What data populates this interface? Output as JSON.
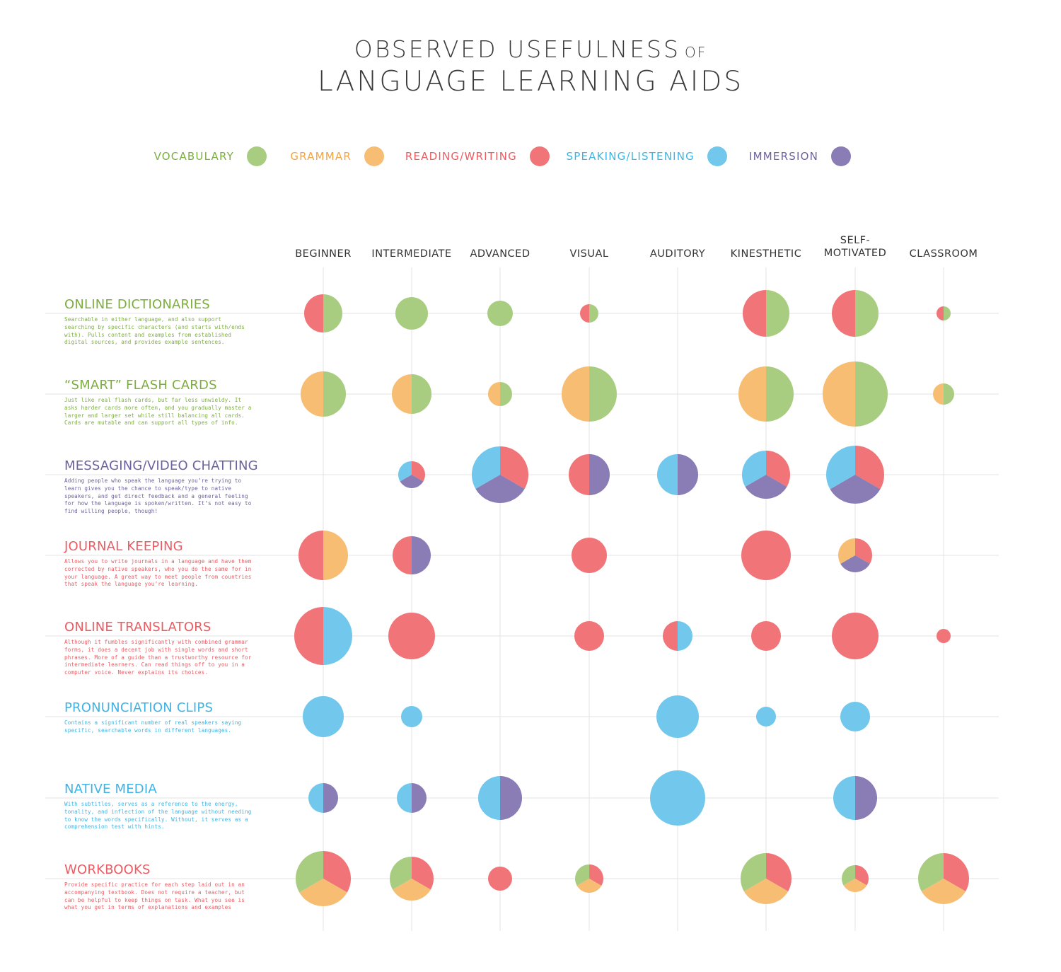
{
  "colors": {
    "vocabulary": "#a8cd80",
    "grammar": "#f6bd73",
    "reading_writing": "#f07478",
    "speaking_listening": "#71c7ec",
    "immersion": "#8a7cb4"
  },
  "title": {
    "line1": "OBSERVED USEFULNESS",
    "of": "OF",
    "line2": "LANGUAGE LEARNING AIDS"
  },
  "legend": [
    {
      "key": "vocabulary",
      "label": "VOCABULARY",
      "text_color": "#7cae3e"
    },
    {
      "key": "grammar",
      "label": "GRAMMAR",
      "text_color": "#f2a443"
    },
    {
      "key": "reading_writing",
      "label": "READING/WRITING",
      "text_color": "#ec5b62"
    },
    {
      "key": "speaking_listening",
      "label": "SPEAKING/LISTENING",
      "text_color": "#3fb4e4"
    },
    {
      "key": "immersion",
      "label": "IMMERSION",
      "text_color": "#6e619f"
    }
  ],
  "chart_data": {
    "type": "pie",
    "columns": [
      {
        "id": "beginner",
        "line1": "BEGINNER",
        "line2": ""
      },
      {
        "id": "intermediate",
        "line1": "INTERMEDIATE",
        "line2": ""
      },
      {
        "id": "advanced",
        "line1": "ADVANCED",
        "line2": ""
      },
      {
        "id": "visual",
        "line1": "VISUAL",
        "line2": ""
      },
      {
        "id": "auditory",
        "line1": "AUDITORY",
        "line2": ""
      },
      {
        "id": "kinesthetic",
        "line1": "KINESTHETIC",
        "line2": ""
      },
      {
        "id": "self-motivated",
        "line1": "SELF-",
        "line2": "MOTIVATED"
      },
      {
        "id": "classroom",
        "line1": "CLASSROOM",
        "line2": ""
      }
    ],
    "rows": [
      {
        "name": "ONLINE DICTIONARIES",
        "title_color": "#7cae3e",
        "description": "Searchable in either language, and also support searching by specific characters (and starts with/ends with). Pulls content and examples from established digital sources, and provides example sentences.",
        "cells": [
          {
            "r": 27,
            "slices": [
              "vocabulary",
              "reading_writing"
            ]
          },
          {
            "r": 23,
            "slices": [
              "vocabulary"
            ]
          },
          {
            "r": 18,
            "slices": [
              "vocabulary"
            ]
          },
          {
            "r": 13,
            "slices": [
              "vocabulary",
              "reading_writing"
            ]
          },
          null,
          {
            "r": 33,
            "slices": [
              "vocabulary",
              "reading_writing"
            ]
          },
          {
            "r": 33,
            "slices": [
              "vocabulary",
              "reading_writing"
            ]
          },
          {
            "r": 10,
            "slices": [
              "vocabulary",
              "reading_writing"
            ]
          }
        ]
      },
      {
        "name": "“SMART” FLASH CARDS",
        "title_color": "#7cae3e",
        "description": "Just like real flash cards, but far less unwieldy. It asks harder cards more often, and you gradually master a larger and larger set while still balancing all cards. Cards are mutable and can support all types of info.",
        "cells": [
          {
            "r": 32,
            "slices": [
              "vocabulary",
              "grammar"
            ]
          },
          {
            "r": 28,
            "slices": [
              "vocabulary",
              "grammar"
            ]
          },
          {
            "r": 17,
            "slices": [
              "vocabulary",
              "grammar"
            ]
          },
          {
            "r": 39,
            "slices": [
              "vocabulary",
              "grammar"
            ]
          },
          null,
          {
            "r": 39,
            "slices": [
              "vocabulary",
              "grammar"
            ]
          },
          {
            "r": 46,
            "slices": [
              "vocabulary",
              "grammar"
            ]
          },
          {
            "r": 15,
            "slices": [
              "vocabulary",
              "grammar"
            ]
          }
        ]
      },
      {
        "name": "MESSAGING/VIDEO CHATTING",
        "title_color": "#6e619f",
        "description": "Adding people who speak the language you’re trying to learn gives you the chance to speak/type to native speakers, and get direct feedback and a general feeling for how the language is spoken/written. It’s not easy to find willing people, though!",
        "cells": [
          null,
          {
            "r": 19,
            "slices": [
              "reading_writing",
              "immersion",
              "speaking_listening"
            ]
          },
          {
            "r": 40,
            "slices": [
              "reading_writing",
              "immersion",
              "speaking_listening"
            ]
          },
          {
            "r": 29,
            "slices": [
              "immersion",
              "reading_writing"
            ]
          },
          {
            "r": 29,
            "slices": [
              "immersion",
              "speaking_listening"
            ]
          },
          {
            "r": 34,
            "slices": [
              "reading_writing",
              "immersion",
              "speaking_listening"
            ]
          },
          {
            "r": 41,
            "slices": [
              "reading_writing",
              "immersion",
              "speaking_listening"
            ]
          },
          null
        ]
      },
      {
        "name": "JOURNAL KEEPING",
        "title_color": "#ec5b62",
        "description": "Allows you to write journals in a language and have them corrected by native speakers, who you do the same for in your language. A great way to meet people from countries that speak the language you’re learning.",
        "cells": [
          {
            "r": 35,
            "slices": [
              "grammar",
              "reading_writing"
            ]
          },
          {
            "r": 27,
            "slices": [
              "immersion",
              "reading_writing"
            ]
          },
          null,
          {
            "r": 25,
            "slices": [
              "reading_writing"
            ]
          },
          null,
          {
            "r": 35,
            "slices": [
              "reading_writing"
            ]
          },
          {
            "r": 24,
            "slices": [
              "reading_writing",
              "immersion",
              "grammar"
            ]
          },
          null
        ]
      },
      {
        "name": "ONLINE TRANSLATORS",
        "title_color": "#ec5b62",
        "description": "Although it fumbles significantly with combined grammar forms, it does a decent job with single words and short phrases. More of a guide than a trustworthy resource for intermediate learners. Can read things off to you in a computer voice. Never explains its choices.",
        "cells": [
          {
            "r": 41,
            "slices": [
              "speaking_listening",
              "reading_writing"
            ]
          },
          {
            "r": 33,
            "slices": [
              "reading_writing"
            ]
          },
          null,
          {
            "r": 21,
            "slices": [
              "reading_writing"
            ]
          },
          {
            "r": 21,
            "slices": [
              "speaking_listening",
              "reading_writing"
            ]
          },
          {
            "r": 21,
            "slices": [
              "reading_writing"
            ]
          },
          {
            "r": 33,
            "slices": [
              "reading_writing"
            ]
          },
          {
            "r": 10,
            "slices": [
              "reading_writing"
            ]
          }
        ]
      },
      {
        "name": "PRONUNCIATION CLIPS",
        "title_color": "#3fb4e4",
        "description": "Contains a significant number of real speakers saying specific, searchable words in different languages.",
        "cells": [
          {
            "r": 29,
            "slices": [
              "speaking_listening"
            ]
          },
          {
            "r": 15,
            "slices": [
              "speaking_listening"
            ]
          },
          null,
          null,
          {
            "r": 30,
            "slices": [
              "speaking_listening"
            ]
          },
          {
            "r": 14,
            "slices": [
              "speaking_listening"
            ]
          },
          {
            "r": 21,
            "slices": [
              "speaking_listening"
            ]
          },
          null
        ]
      },
      {
        "name": "NATIVE MEDIA",
        "title_color": "#3fb4e4",
        "description": "With subtitles, serves as a reference to the energy, tonality, and inflection of the language without needing to know the words specifically. Without, it serves as a comprehension test with hints.",
        "cells": [
          {
            "r": 21,
            "slices": [
              "immersion",
              "speaking_listening"
            ]
          },
          {
            "r": 21,
            "slices": [
              "immersion",
              "speaking_listening"
            ]
          },
          {
            "r": 31,
            "slices": [
              "immersion",
              "speaking_listening"
            ]
          },
          null,
          {
            "r": 39,
            "slices": [
              "speaking_listening"
            ]
          },
          null,
          {
            "r": 31,
            "slices": [
              "immersion",
              "speaking_listening"
            ]
          },
          null
        ]
      },
      {
        "name": "WORKBOOKS",
        "title_color": "#ec5b62",
        "description": "Provide specific practice for each step laid out in an accompanying textbook. Does not require a teacher, but can be helpful to keep things on task. What you see is what you get in terms of explanations and examples",
        "cells": [
          {
            "r": 39,
            "slices": [
              "reading_writing",
              "grammar",
              "vocabulary"
            ]
          },
          {
            "r": 31,
            "slices": [
              "reading_writing",
              "grammar",
              "vocabulary"
            ]
          },
          {
            "r": 17,
            "slices": [
              "reading_writing"
            ]
          },
          {
            "r": 20,
            "slices": [
              "reading_writing",
              "grammar",
              "vocabulary"
            ]
          },
          null,
          {
            "r": 36,
            "slices": [
              "reading_writing",
              "grammar",
              "vocabulary"
            ]
          },
          {
            "r": 19,
            "slices": [
              "reading_writing",
              "grammar",
              "vocabulary"
            ]
          },
          {
            "r": 36,
            "slices": [
              "reading_writing",
              "grammar",
              "vocabulary"
            ]
          }
        ]
      }
    ]
  }
}
